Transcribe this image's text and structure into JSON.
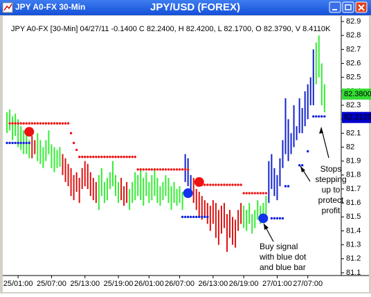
{
  "window_title": "JPY A0-FX 30-Min",
  "chart_data": {
    "type": "ohlc",
    "title": "JPY/USD (FOREX)",
    "header": "JPY A0-FX [30-Min] 04/27/11  -0.1400 C 82.2400, H 82.4200, L 82.1700, O 82.3790, V 8.4110K",
    "ylim": [
      81.08,
      82.94
    ],
    "yticks": [
      81.1,
      81.2,
      81.3,
      81.4,
      81.5,
      81.6,
      81.7,
      81.8,
      81.9,
      82,
      82.1,
      82.2,
      82.3,
      82.4,
      82.5,
      82.6,
      82.7,
      82.8,
      82.9
    ],
    "xlim": [
      -1.5,
      120
    ],
    "xticks": [
      {
        "value": 4,
        "label": "25/01:00"
      },
      {
        "value": 16,
        "label": "25/07:00"
      },
      {
        "value": 28,
        "label": "25/13:00"
      },
      {
        "value": 40,
        "label": "25/19:00"
      },
      {
        "value": 51,
        "label": "26/01:00"
      },
      {
        "value": 62,
        "label": "26/07:00"
      },
      {
        "value": 74,
        "label": "26/13:00"
      },
      {
        "value": 85,
        "label": "26/19:00"
      },
      {
        "value": 97,
        "label": "27/01:00"
      },
      {
        "value": 108,
        "label": "27/07:00"
      }
    ],
    "series": [
      {
        "start": 0,
        "color": "#33ee33",
        "high": [
          82.25,
          82.27,
          82.22,
          82.24,
          82.2,
          82.15,
          82.12,
          82.1,
          82.05
        ],
        "low": [
          82.1,
          82.12,
          82.05,
          82.08,
          82.0,
          81.98,
          81.95,
          81.95,
          81.92
        ]
      },
      {
        "start": 9,
        "color": "#dd1111",
        "high": [
          82.08,
          82.05
        ],
        "low": [
          81.92,
          81.95
        ]
      },
      {
        "start": 11,
        "color": "#33ee33",
        "high": [
          82.1,
          82.05,
          82.0,
          82.05,
          82.12,
          82.02,
          82.0,
          81.98,
          82.0
        ],
        "low": [
          81.9,
          81.88,
          81.85,
          81.9,
          81.95,
          81.85,
          81.82,
          81.85,
          81.86
        ]
      },
      {
        "start": 20,
        "color": "#dd1111",
        "high": [
          81.95,
          81.92,
          81.88,
          81.85,
          81.8,
          81.82,
          81.78,
          81.85,
          81.9,
          81.88,
          81.82,
          81.78,
          81.75
        ],
        "low": [
          81.8,
          81.75,
          81.72,
          81.65,
          81.62,
          81.68,
          81.6,
          81.7,
          81.72,
          81.7,
          81.65,
          81.62,
          81.6
        ]
      },
      {
        "start": 33,
        "color": "#33ee33",
        "high": [
          81.8,
          81.85,
          81.75,
          81.78,
          81.82,
          81.9,
          81.8,
          81.75
        ],
        "low": [
          81.55,
          81.65,
          81.6,
          81.62,
          81.7,
          81.72,
          81.65,
          81.6
        ]
      },
      {
        "start": 41,
        "color": "#dd1111",
        "high": [
          81.78,
          81.72,
          81.75
        ],
        "low": [
          81.62,
          81.58,
          81.6
        ]
      },
      {
        "start": 44,
        "color": "#33ee33",
        "high": [
          81.7,
          81.75,
          81.82,
          81.8,
          81.85,
          81.78,
          81.82,
          81.75,
          81.8,
          81.85,
          81.78,
          81.72,
          81.75,
          81.8,
          81.78,
          81.72,
          81.75,
          81.7,
          81.72,
          81.68
        ],
        "low": [
          81.55,
          81.6,
          81.62,
          81.65,
          81.62,
          81.58,
          81.65,
          81.6,
          81.62,
          81.65,
          81.6,
          81.58,
          81.62,
          81.65,
          81.6,
          81.55,
          81.6,
          81.58,
          81.6,
          81.55
        ]
      },
      {
        "start": 64,
        "color": "#1122cc",
        "high": [
          81.95,
          81.92,
          81.8
        ],
        "low": [
          81.75,
          81.72,
          81.65
        ]
      },
      {
        "start": 67,
        "color": "#dd1111",
        "high": [
          81.78,
          81.7,
          81.68,
          81.65,
          81.62,
          81.6,
          81.58,
          81.62,
          81.6,
          81.55,
          81.58,
          81.6,
          81.52,
          81.55,
          81.5,
          81.48,
          81.55,
          81.6
        ],
        "low": [
          81.6,
          81.55,
          81.5,
          81.48,
          81.5,
          81.45,
          81.4,
          81.45,
          81.35,
          81.3,
          81.38,
          81.42,
          81.25,
          81.35,
          81.3,
          81.28,
          81.4,
          81.45
        ]
      },
      {
        "start": 85,
        "color": "#33ee33",
        "high": [
          81.58,
          81.55,
          81.6,
          81.52,
          81.55,
          81.62,
          81.58,
          81.6,
          81.65
        ],
        "low": [
          81.42,
          81.4,
          81.45,
          81.38,
          81.42,
          81.48,
          81.45,
          81.5,
          81.52
        ]
      },
      {
        "start": 94,
        "color": "#1122cc",
        "high": [
          81.9,
          81.95,
          81.85,
          81.8,
          81.92,
          82.05,
          82.35,
          82.2,
          82.1,
          82.3,
          82.15,
          82.35,
          82.28,
          82.4,
          82.45,
          82.5,
          82.7
        ],
        "low": [
          81.6,
          81.7,
          81.65,
          81.62,
          81.72,
          81.85,
          81.95,
          81.9,
          81.95,
          82.0,
          82.05,
          82.1,
          82.1,
          82.15,
          82.2,
          82.3,
          82.3
        ]
      },
      {
        "start": 111,
        "color": "#33ee33",
        "high": [
          82.75,
          82.8,
          82.6,
          82.45
        ],
        "low": [
          82.45,
          82.5,
          82.3,
          82.25
        ]
      }
    ],
    "stops": [
      {
        "color": "#ee1111",
        "from": 1,
        "to": 22,
        "value": 82.17
      },
      {
        "color": "#ee1111",
        "from": 23,
        "to": 23,
        "value": 82.1
      },
      {
        "color": "#ee1111",
        "from": 24,
        "to": 24,
        "value": 82.03
      },
      {
        "color": "#ee1111",
        "from": 25,
        "to": 25,
        "value": 81.98
      },
      {
        "color": "#ee1111",
        "from": 26,
        "to": 46,
        "value": 81.93
      },
      {
        "color": "#ee1111",
        "from": 47,
        "to": 65,
        "value": 81.84
      },
      {
        "color": "#ee1111",
        "from": 70,
        "to": 84,
        "value": 81.73
      },
      {
        "color": "#ee1111",
        "from": 85,
        "to": 93,
        "value": 81.67
      },
      {
        "color": "#1122dd",
        "from": 0,
        "to": 8,
        "value": 82.03
      },
      {
        "color": "#1122dd",
        "from": 63,
        "to": 72,
        "value": 81.5
      },
      {
        "color": "#1122dd",
        "from": 95,
        "to": 99,
        "value": 81.49
      },
      {
        "color": "#1122dd",
        "from": 100,
        "to": 101,
        "value": 81.72
      },
      {
        "color": "#1122dd",
        "from": 105,
        "to": 106,
        "value": 81.87
      },
      {
        "color": "#1122dd",
        "from": 108,
        "to": 108,
        "value": 81.97
      },
      {
        "color": "#1122dd",
        "from": 110,
        "to": 114,
        "value": 82.22
      }
    ],
    "signals": [
      {
        "color": "#ee1111",
        "x": 8,
        "value": 82.11
      },
      {
        "color": "#1133ee",
        "x": 65,
        "value": 81.67
      },
      {
        "color": "#ee1111",
        "x": 69,
        "value": 81.75
      },
      {
        "color": "#1133ee",
        "x": 92,
        "value": 81.49
      }
    ],
    "price_tags": [
      {
        "label": "82.3800",
        "value": 82.38,
        "color": "#33dd33",
        "text_color": "#ffffff"
      },
      {
        "label": "82.2125",
        "value": 82.2125,
        "color": "#0000cc",
        "text_color": "#ffffff"
      }
    ],
    "annotations": [
      {
        "lines": [
          "Stops",
          "stepping",
          "up to",
          "protect",
          "profit"
        ]
      },
      {
        "lines": [
          "Buy signal",
          "with blue dot",
          "and blue bar"
        ]
      }
    ]
  }
}
